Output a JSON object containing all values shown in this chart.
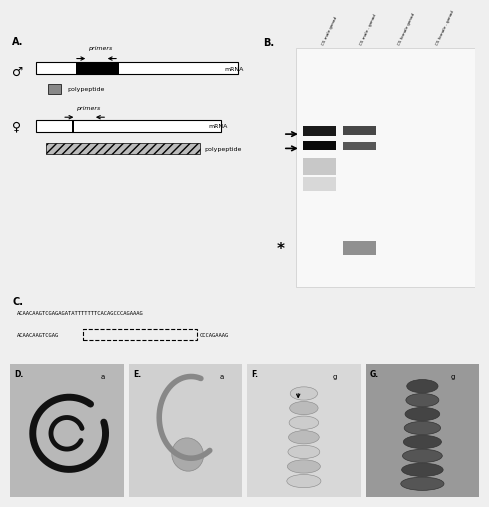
{
  "panel_A_label": "A.",
  "panel_B_label": "B.",
  "panel_C_label": "C.",
  "panel_D_label": "D.",
  "panel_E_label": "E.",
  "panel_F_label": "F.",
  "panel_G_label": "G.",
  "male_symbol": "♂",
  "female_symbol": "♀",
  "mRNA_label": "mRNA",
  "polypeptide_label": "polypeptide",
  "primers_label": "primers",
  "seq1": "ACAACAAGTCGAGAGATATTTTTTTCACAGCCCAGAAAG",
  "seq2_part1": "ACAACAAGTCGAG",
  "seq2_part2": "CCCAGAAAG",
  "B_col_labels": [
    "C5 male gonad",
    "C5 male - gonad",
    "C5 female gonad",
    "C5 female - gonad"
  ],
  "bg_color": "#efefef",
  "gel_bg": "#f8f8f8",
  "band_dark": "#1a1a1a",
  "band_mid": "#505050",
  "band_light": "#aaaaaa",
  "star_band": "#909090"
}
